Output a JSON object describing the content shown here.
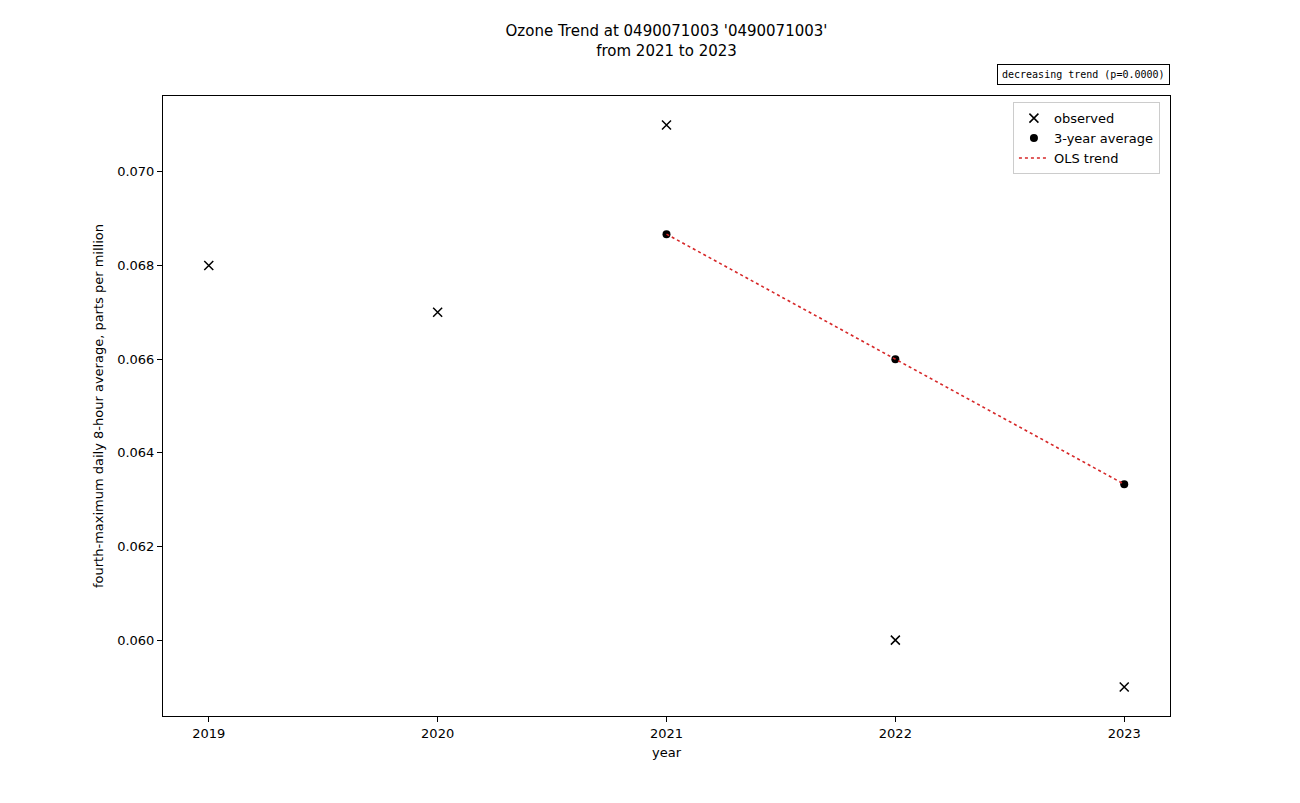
{
  "chart_data": {
    "type": "scatter",
    "title": "Ozone Trend at 0490071003 '0490071003'\nfrom 2021 to 2023",
    "x_label": "year",
    "y_label": "fourth-maximum daily 8-hour average, parts per million",
    "annotations": [
      "decreasing trend (p=0.0000)"
    ],
    "legend": "upper right",
    "grid": false,
    "xlim": [
      2018.8,
      2023.2
    ],
    "xticks": [
      2019,
      2020,
      2021,
      2022,
      2023
    ],
    "ylim": [
      0.05838,
      0.07162
    ],
    "yticks": [
      {
        "value": 0.06,
        "label": "0.060"
      },
      0.062,
      0.064,
      0.066,
      0.068,
      {
        "value": 0.07,
        "label": "0.070"
      }
    ],
    "series": [
      {
        "name": "observed",
        "type": "scatter",
        "marker": "x",
        "color": "#000000",
        "x": [
          2019,
          2020,
          2021,
          2022,
          2023
        ],
        "values": [
          0.068,
          0.067,
          0.071,
          0.06,
          0.059
        ]
      },
      {
        "name": "3-year average",
        "type": "scatter",
        "marker": "circle",
        "color": "#000000",
        "x": [
          2021,
          2022,
          2023
        ],
        "values": [
          0.06867,
          0.066,
          0.06333
        ]
      },
      {
        "name": "OLS trend",
        "type": "line",
        "line_style": "dotted",
        "color": "#d62728",
        "x": [
          2021,
          2022,
          2023
        ],
        "values": [
          0.06867,
          0.066,
          0.06333
        ]
      }
    ]
  }
}
